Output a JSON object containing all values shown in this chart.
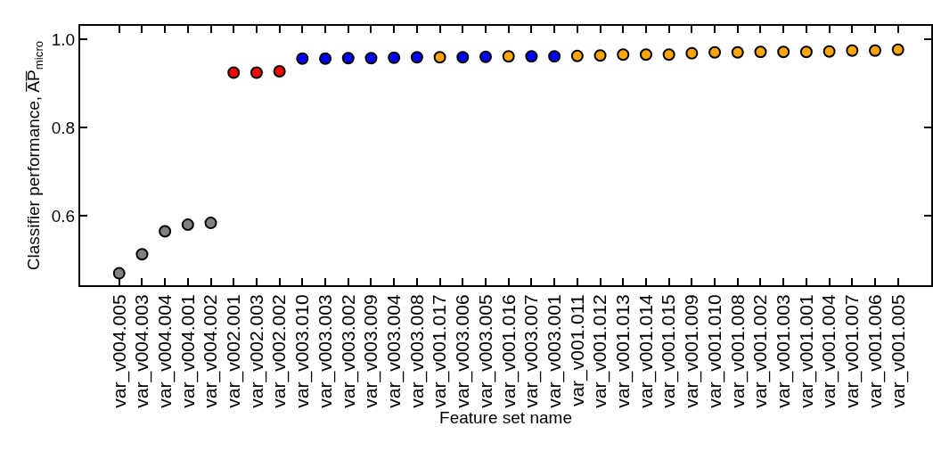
{
  "chart_data": {
    "type": "scatter",
    "xlabel": "Feature set name",
    "ylabel": "Classifier performance, A̅P̅$_{micro}$",
    "categories": [
      "var_v004.005",
      "var_v004.003",
      "var_v004.004",
      "var_v004.001",
      "var_v004.002",
      "var_v002.001",
      "var_v002.003",
      "var_v002.002",
      "var_v003.010",
      "var_v003.003",
      "var_v003.002",
      "var_v003.009",
      "var_v003.004",
      "var_v003.008",
      "var_v001.017",
      "var_v003.006",
      "var_v003.005",
      "var_v001.016",
      "var_v003.007",
      "var_v003.001",
      "var_v001.011",
      "var_v001.012",
      "var_v001.013",
      "var_v001.014",
      "var_v001.015",
      "var_v001.009",
      "var_v001.010",
      "var_v001.008",
      "var_v001.002",
      "var_v001.003",
      "var_v001.001",
      "var_v001.004",
      "var_v001.007",
      "var_v001.006",
      "var_v001.005"
    ],
    "values": [
      0.47,
      0.513,
      0.565,
      0.58,
      0.584,
      0.924,
      0.924,
      0.927,
      0.956,
      0.956,
      0.957,
      0.957,
      0.958,
      0.959,
      0.959,
      0.959,
      0.96,
      0.961,
      0.961,
      0.961,
      0.962,
      0.963,
      0.965,
      0.965,
      0.965,
      0.968,
      0.97,
      0.97,
      0.971,
      0.971,
      0.971,
      0.972,
      0.974,
      0.974,
      0.976
    ],
    "colors": [
      "#808080",
      "#808080",
      "#808080",
      "#808080",
      "#808080",
      "#ff0000",
      "#ff0000",
      "#ff0000",
      "#0000ff",
      "#0000ff",
      "#0000ff",
      "#0000ff",
      "#0000ff",
      "#0000ff",
      "#ffa500",
      "#0000ff",
      "#0000ff",
      "#ffa500",
      "#0000ff",
      "#0000ff",
      "#ffa500",
      "#ffa500",
      "#ffa500",
      "#ffa500",
      "#ffa500",
      "#ffa500",
      "#ffa500",
      "#ffa500",
      "#ffa500",
      "#ffa500",
      "#ffa500",
      "#ffa500",
      "#ffa500",
      "#ffa500",
      "#ffa500"
    ],
    "ylim": [
      0.443,
      1.03
    ],
    "yticks": [
      0.6,
      0.8,
      {
        "value": 1,
        "label": "1.0"
      }
    ],
    "marker": "circle",
    "grid": false
  }
}
